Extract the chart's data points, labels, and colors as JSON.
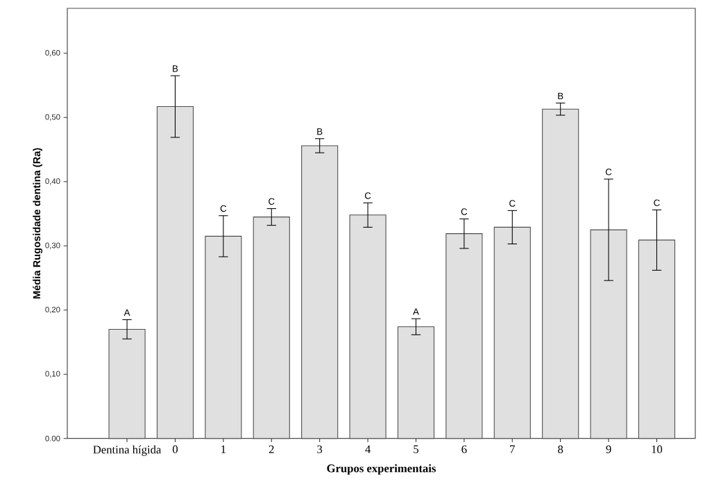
{
  "chart_data": {
    "type": "bar",
    "xlabel": "Grupos experimentais",
    "ylabel": "Média Rugosidade dentina (Ra)",
    "categories": [
      "Dentina hígida",
      "0",
      "1",
      "2",
      "3",
      "4",
      "5",
      "6",
      "7",
      "8",
      "9",
      "10"
    ],
    "values": [
      0.17,
      0.517,
      0.315,
      0.345,
      0.456,
      0.348,
      0.174,
      0.319,
      0.329,
      0.513,
      0.325,
      0.309
    ],
    "errors": [
      0.015,
      0.048,
      0.032,
      0.013,
      0.011,
      0.019,
      0.0125,
      0.023,
      0.026,
      0.0095,
      0.079,
      0.047
    ],
    "color": "#e0e0e0",
    "ylim": [
      0,
      0.67
    ],
    "yticks": [
      {
        "value": 0,
        "label": "0.00"
      },
      {
        "value": 0.1,
        "label": "0,10"
      },
      {
        "value": 0.2,
        "label": "0,20"
      },
      {
        "value": 0.3,
        "label": "0,30"
      },
      {
        "value": 0.4,
        "label": "0,40"
      },
      {
        "value": 0.5,
        "label": "0,50"
      },
      {
        "value": 0.6,
        "label": "0,60"
      }
    ],
    "annotations": [
      {
        "text": "A",
        "x": "Dentina hígida",
        "y": 0.185
      },
      {
        "text": "B",
        "x": "0",
        "y": 0.565
      },
      {
        "text": "C",
        "x": "1",
        "y": 0.347
      },
      {
        "text": "C",
        "x": "2",
        "y": 0.358
      },
      {
        "text": "B",
        "x": "3",
        "y": 0.467
      },
      {
        "text": "C",
        "x": "4",
        "y": 0.367
      },
      {
        "text": "A",
        "x": "5",
        "y": 0.1865
      },
      {
        "text": "C",
        "x": "6",
        "y": 0.342
      },
      {
        "text": "C",
        "x": "7",
        "y": 0.355
      },
      {
        "text": "B",
        "x": "8",
        "y": 0.5225
      },
      {
        "text": "C",
        "x": "9",
        "y": 0.404
      },
      {
        "text": "C",
        "x": "10",
        "y": 0.356
      }
    ]
  }
}
